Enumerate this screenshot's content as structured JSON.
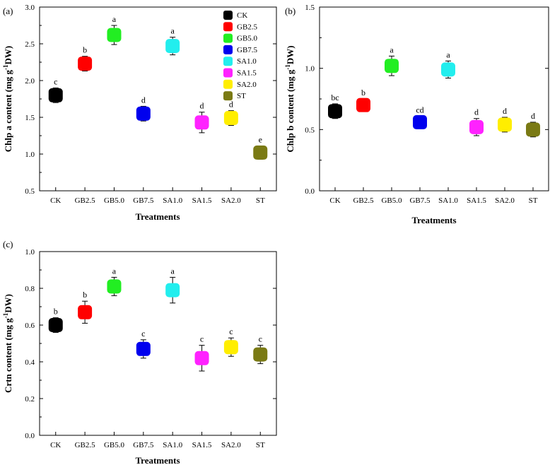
{
  "colors": {
    "CK": "#000000",
    "GB2.5": "#ff0000",
    "GB5.0": "#22ee22",
    "GB7.5": "#0000ee",
    "SA1.0": "#22eeee",
    "SA1.5": "#ff22ff",
    "SA2.0": "#ffee00",
    "ST": "#7a7a14"
  },
  "legend": {
    "placement": "top-right of panel (a)",
    "items": [
      "CK",
      "GB2.5",
      "GB5.0",
      "GB7.5",
      "SA1.0",
      "SA1.5",
      "SA2.0",
      "ST"
    ]
  },
  "chart_data": [
    {
      "type": "scatter",
      "panel": "(a)",
      "title": "",
      "xlabel": "Treatments",
      "ylabel_prefix": "Chlp a content (mg g",
      "ylabel_sup": "-1",
      "ylabel_suffix": "DW)",
      "ylim": [
        0.5,
        3.0
      ],
      "yticks": [
        0.5,
        1.0,
        1.5,
        2.0,
        2.5,
        3.0
      ],
      "ytick_labels": [
        "0.5",
        "1.0",
        "1.5",
        "2.0",
        "2.5",
        "3.0"
      ],
      "categories": [
        "CK",
        "GB2.5",
        "GB5.0",
        "GB7.5",
        "SA1.0",
        "SA1.5",
        "SA2.0",
        "ST"
      ],
      "values": [
        1.8,
        2.23,
        2.62,
        1.55,
        2.47,
        1.43,
        1.49,
        1.02
      ],
      "errors": [
        0.1,
        0.1,
        0.13,
        0.1,
        0.12,
        0.14,
        0.1,
        0.09
      ],
      "labels": [
        "c",
        "b",
        "a",
        "d",
        "a",
        "d",
        "d",
        "e"
      ]
    },
    {
      "type": "scatter",
      "panel": "(b)",
      "title": "",
      "xlabel": "Treatments",
      "ylabel_prefix": "Chlp b content (mg g",
      "ylabel_sup": "-1",
      "ylabel_suffix": "DW)",
      "ylim": [
        0.0,
        1.5
      ],
      "yticks": [
        0.0,
        0.5,
        1.0,
        1.5
      ],
      "ytick_labels": [
        "0.0",
        "0.5",
        "1.0",
        "1.5"
      ],
      "categories": [
        "CK",
        "GB2.5",
        "GB5.0",
        "GB7.5",
        "SA1.0",
        "SA1.5",
        "SA2.0",
        "ST"
      ],
      "values": [
        0.65,
        0.7,
        1.02,
        0.56,
        0.99,
        0.52,
        0.54,
        0.5
      ],
      "errors": [
        0.06,
        0.05,
        0.08,
        0.05,
        0.07,
        0.07,
        0.06,
        0.06
      ],
      "labels": [
        "bc",
        "b",
        "a",
        "cd",
        "a",
        "d",
        "d",
        "d"
      ]
    },
    {
      "type": "scatter",
      "panel": "(c)",
      "title": "",
      "xlabel": "Treatments",
      "ylabel_prefix": "Crtn content (mg g",
      "ylabel_sup": "-1",
      "ylabel_suffix": "DW)",
      "ylim": [
        0.0,
        1.0
      ],
      "yticks": [
        0.0,
        0.2,
        0.4,
        0.6,
        0.8,
        1.0
      ],
      "ytick_labels": [
        "0.0",
        "0.2",
        "0.4",
        "0.6",
        "0.8",
        "1.0"
      ],
      "categories": [
        "CK",
        "GB2.5",
        "GB5.0",
        "GB7.5",
        "SA1.0",
        "SA1.5",
        "SA2.0",
        "ST"
      ],
      "values": [
        0.6,
        0.67,
        0.81,
        0.47,
        0.79,
        0.42,
        0.48,
        0.44
      ],
      "errors": [
        0.04,
        0.06,
        0.05,
        0.05,
        0.07,
        0.07,
        0.05,
        0.05
      ],
      "labels": [
        "b",
        "b",
        "a",
        "c",
        "a",
        "c",
        "c",
        "c"
      ]
    }
  ]
}
